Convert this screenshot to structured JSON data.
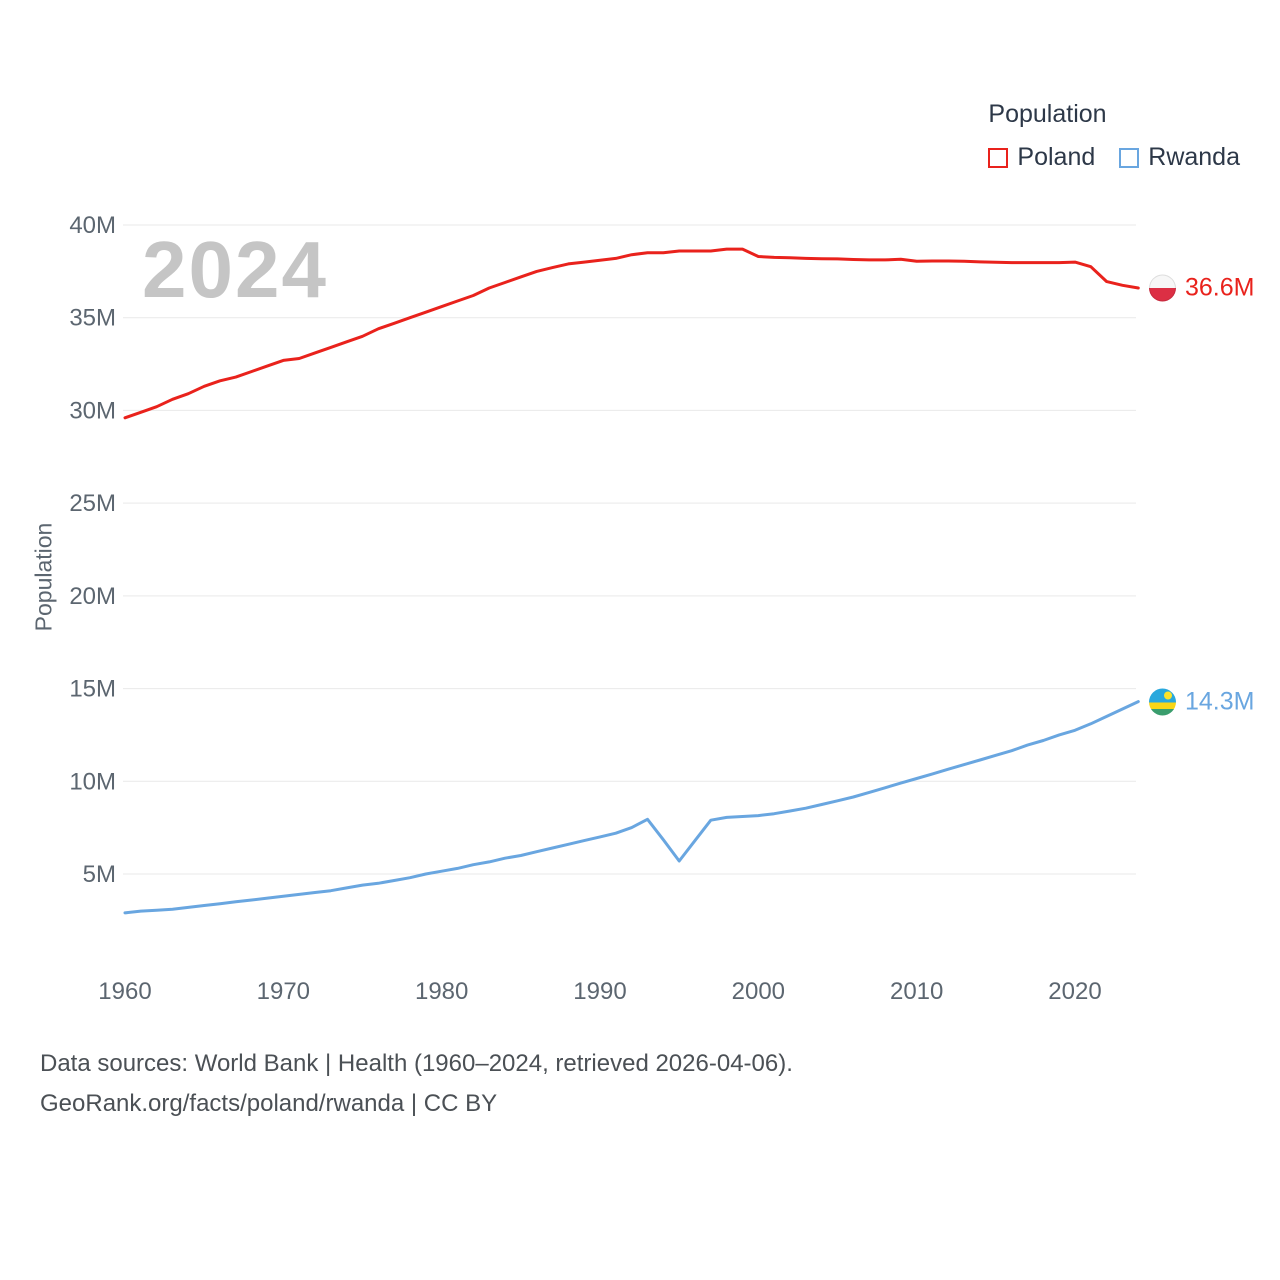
{
  "watermark": "2024",
  "legend": {
    "title": "Population",
    "items": [
      {
        "label": "Poland",
        "color": "#e9221c"
      },
      {
        "label": "Rwanda",
        "color": "#69a6e0"
      }
    ]
  },
  "footer": {
    "line1": "Data sources: World Bank | Health (1960–2024, retrieved 2026-04-06).",
    "line2": "GeoRank.org/facts/poland/rwanda | CC BY"
  },
  "chart_data": {
    "type": "line",
    "title": "Population",
    "ylabel": "Population",
    "xlabel": "",
    "grid": true,
    "legend_position": "top-right",
    "xlim": [
      1960,
      2024
    ],
    "ylim": [
      0,
      42
    ],
    "x_tick_values": [
      1960,
      1970,
      1980,
      1990,
      2000,
      2010,
      2020
    ],
    "x_tick_labels": [
      "1960",
      "1970",
      "1980",
      "1990",
      "2000",
      "2010",
      "2020"
    ],
    "y_tick_values": [
      5,
      10,
      15,
      20,
      25,
      30,
      35,
      40
    ],
    "y_tick_labels": [
      "5M",
      "10M",
      "15M",
      "20M",
      "25M",
      "30M",
      "35M",
      "40M"
    ],
    "x": [
      1960,
      1961,
      1962,
      1963,
      1964,
      1965,
      1966,
      1967,
      1968,
      1969,
      1970,
      1971,
      1972,
      1973,
      1974,
      1975,
      1976,
      1977,
      1978,
      1979,
      1980,
      1981,
      1982,
      1983,
      1984,
      1985,
      1986,
      1987,
      1988,
      1989,
      1990,
      1991,
      1992,
      1993,
      1994,
      1995,
      1996,
      1997,
      1998,
      1999,
      2000,
      2001,
      2002,
      2003,
      2004,
      2005,
      2006,
      2007,
      2008,
      2009,
      2010,
      2011,
      2012,
      2013,
      2014,
      2015,
      2016,
      2017,
      2018,
      2019,
      2020,
      2021,
      2022,
      2023,
      2024
    ],
    "series": [
      {
        "name": "Poland",
        "color": "#e9221c",
        "end_label": "36.6M",
        "values": [
          29.6,
          29.9,
          30.2,
          30.6,
          30.9,
          31.3,
          31.6,
          31.8,
          32.1,
          32.4,
          32.7,
          32.8,
          33.1,
          33.4,
          33.7,
          34.0,
          34.4,
          34.7,
          35.0,
          35.3,
          35.6,
          35.9,
          36.2,
          36.6,
          36.9,
          37.2,
          37.5,
          37.7,
          37.9,
          38.0,
          38.1,
          38.2,
          38.4,
          38.5,
          38.5,
          38.6,
          38.6,
          38.6,
          38.7,
          38.7,
          38.3,
          38.25,
          38.23,
          38.2,
          38.18,
          38.17,
          38.14,
          38.12,
          38.12,
          38.15,
          38.04,
          38.06,
          38.06,
          38.04,
          38.01,
          37.99,
          37.97,
          37.97,
          37.97,
          37.97,
          38.0,
          37.75,
          36.95,
          36.75,
          36.6
        ]
      },
      {
        "name": "Rwanda",
        "color": "#69a6e0",
        "end_label": "14.3M",
        "values": [
          2.9,
          3.0,
          3.05,
          3.1,
          3.2,
          3.3,
          3.4,
          3.5,
          3.6,
          3.7,
          3.8,
          3.9,
          4.0,
          4.1,
          4.25,
          4.4,
          4.5,
          4.65,
          4.8,
          5.0,
          5.15,
          5.3,
          5.5,
          5.65,
          5.85,
          6.0,
          6.2,
          6.4,
          6.6,
          6.8,
          7.0,
          7.2,
          7.5,
          7.95,
          6.85,
          5.7,
          6.8,
          7.9,
          8.05,
          8.1,
          8.15,
          8.25,
          8.4,
          8.55,
          8.75,
          8.95,
          9.15,
          9.4,
          9.65,
          9.9,
          10.15,
          10.4,
          10.65,
          10.9,
          11.15,
          11.4,
          11.65,
          11.95,
          12.2,
          12.5,
          12.75,
          13.1,
          13.5,
          13.9,
          14.3
        ]
      }
    ]
  }
}
